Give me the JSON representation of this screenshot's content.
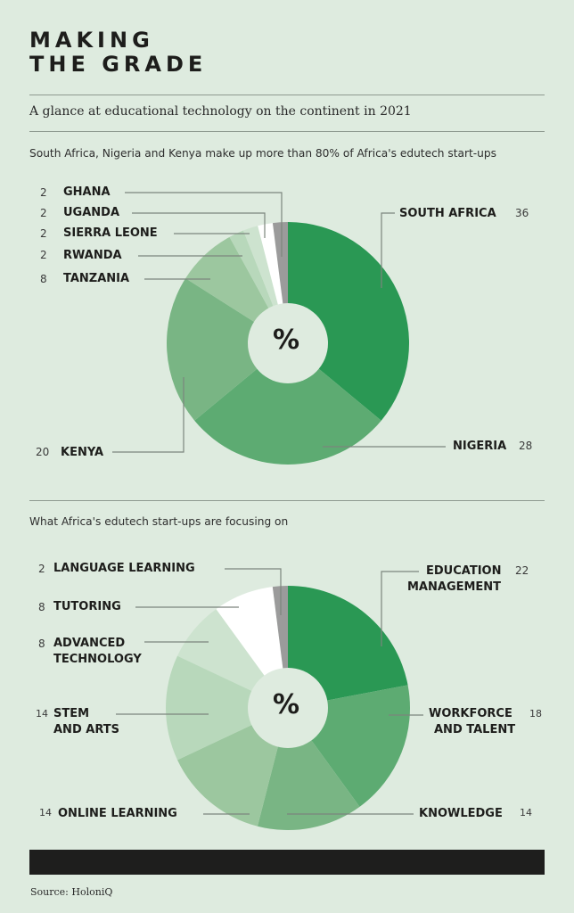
{
  "header": {
    "title_line1": "MAKING",
    "title_line2": "THE GRADE",
    "subtitle": "A glance at educational technology on the continent in 2021"
  },
  "colors": {
    "background": "#deebdf",
    "dark_green": "#2a9854",
    "green2": "#5dab72",
    "green3": "#79b584",
    "green4": "#9cc79f",
    "green5": "#b8d8bb",
    "green6": "#cde3cf",
    "white": "#ffffff",
    "gray": "#9b9b9b",
    "text": "#1d1d1b"
  },
  "chart_data": [
    {
      "type": "pie",
      "title": "South Africa, Nigeria and Kenya make up more than 80% of Africa's edutech start-ups",
      "center_label": "%",
      "categories": [
        "SOUTH AFRICA",
        "NIGERIA",
        "KENYA",
        "TANZANIA",
        "RWANDA",
        "SIERRA LEONE",
        "UGANDA",
        "GHANA"
      ],
      "values": [
        36,
        28,
        20,
        8,
        2,
        2,
        2,
        2
      ],
      "slice_colors": [
        "#2a9854",
        "#5dab72",
        "#79b584",
        "#9cc79f",
        "#b8d8bb",
        "#cde3cf",
        "#ffffff",
        "#9b9b9b"
      ]
    },
    {
      "type": "pie",
      "title": "What Africa's edutech start-ups are focusing on",
      "center_label": "%",
      "categories": [
        "EDUCATION MANAGEMENT",
        "WORKFORCE AND TALENT",
        "KNOWLEDGE",
        "ONLINE LEARNING",
        "STEM AND ARTS",
        "ADVANCED TECHNOLOGY",
        "TUTORING",
        "LANGUAGE LEARNING"
      ],
      "values": [
        22,
        18,
        14,
        14,
        14,
        8,
        8,
        2
      ],
      "slice_colors": [
        "#2a9854",
        "#5dab72",
        "#79b584",
        "#9cc79f",
        "#b8d8bb",
        "#cde3cf",
        "#ffffff",
        "#9b9b9b"
      ]
    }
  ],
  "chart1": {
    "caption": "South Africa, Nigeria and Kenya make up more than 80% of Africa's edutech start-ups",
    "center": "%",
    "labels": {
      "ghana": {
        "name": "GHANA",
        "value": "2"
      },
      "uganda": {
        "name": "UGANDA",
        "value": "2"
      },
      "sierra_leone": {
        "name": "SIERRA LEONE",
        "value": "2"
      },
      "rwanda": {
        "name": "RWANDA",
        "value": "2"
      },
      "tanzania": {
        "name": "TANZANIA",
        "value": "8"
      },
      "kenya": {
        "name": "KENYA",
        "value": "20"
      },
      "south_africa": {
        "name": "SOUTH AFRICA",
        "value": "36"
      },
      "nigeria": {
        "name": "NIGERIA",
        "value": "28"
      }
    }
  },
  "chart2": {
    "caption": "What Africa's edutech start-ups are focusing on",
    "center": "%",
    "labels": {
      "language": {
        "name": "LANGUAGE LEARNING",
        "value": "2"
      },
      "tutoring": {
        "name": "TUTORING",
        "value": "8"
      },
      "advanced_l1": "ADVANCED",
      "advanced_l2": "TECHNOLOGY",
      "advanced_value": "8",
      "stem_l1": "STEM",
      "stem_l2": "AND ARTS",
      "stem_value": "14",
      "online": {
        "name": "ONLINE LEARNING",
        "value": "14"
      },
      "education_l1": "EDUCATION",
      "education_l2": "MANAGEMENT",
      "education_value": "22",
      "workforce_l1": "WORKFORCE",
      "workforce_l2": "AND TALENT",
      "workforce_value": "18",
      "knowledge": {
        "name": "KNOWLEDGE",
        "value": "14"
      }
    }
  },
  "footer": {
    "source": "Source: HoloniQ"
  }
}
